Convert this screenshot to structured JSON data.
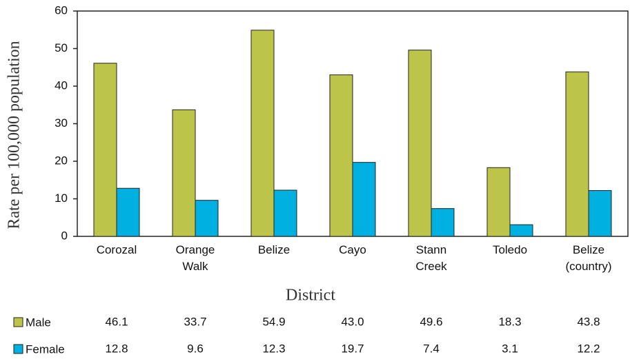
{
  "chart_data": {
    "type": "bar",
    "y_label": "Rate per 100,000 population",
    "x_label": "District",
    "categories": [
      "Corozal",
      "Orange Walk",
      "Belize",
      "Cayo",
      "Stann Creek",
      "Toledo",
      "Belize (country)"
    ],
    "series": [
      {
        "name": "Male",
        "color": "#bcc449",
        "values": [
          46.1,
          33.7,
          54.9,
          43.0,
          49.6,
          18.3,
          43.8
        ],
        "value_labels": [
          "46.1",
          "33.7",
          "54.9",
          "43.0",
          "49.6",
          "18.3",
          "43.8"
        ]
      },
      {
        "name": "Female",
        "color": "#00b0e0",
        "values": [
          12.8,
          9.6,
          12.3,
          19.7,
          7.4,
          3.1,
          12.2
        ],
        "value_labels": [
          "12.8",
          "9.6",
          "12.3",
          "19.7",
          "7.4",
          "3.1",
          "12.2"
        ]
      }
    ],
    "ylim": [
      0,
      60
    ],
    "yticks": [
      0,
      10,
      20,
      30,
      40,
      50,
      60
    ],
    "grid": false
  }
}
